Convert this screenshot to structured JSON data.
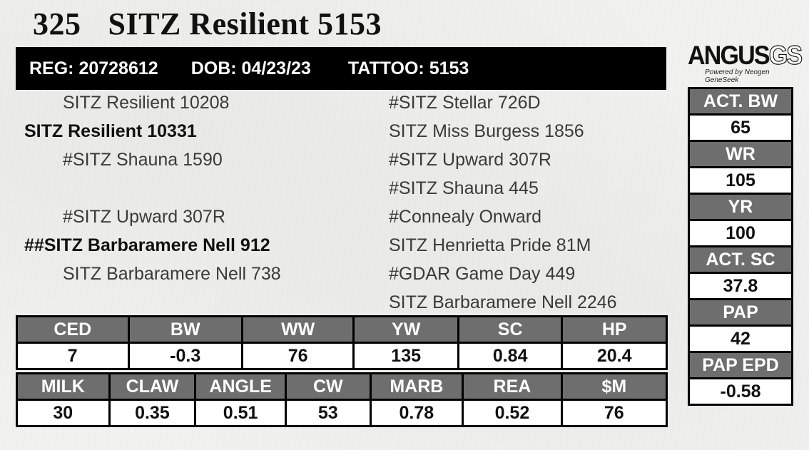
{
  "lot": {
    "number": "325",
    "name": "SITZ Resilient 5153"
  },
  "registration": {
    "reg": "REG: 20728612",
    "dob": "DOB: 04/23/23",
    "tattoo": "TATTOO: 5153"
  },
  "logo": {
    "brand": "ANGUS",
    "brand_suffix": "GS",
    "tagline": "Powered by Neogen GeneSeek"
  },
  "pedigree": {
    "sire_sire": "SITZ Resilient 10208",
    "sire": "SITZ Resilient 10331",
    "sire_dam": "#SITZ Shauna 1590",
    "dam_sire": "#SITZ Upward 307R",
    "dam": "##SITZ Barbaramere Nell 912",
    "dam_dam": "SITZ Barbaramere Nell 738",
    "right": [
      "#SITZ Stellar 726D",
      "SITZ Miss Burgess 1856",
      "#SITZ Upward 307R",
      "#SITZ Shauna 445",
      "#Connealy Onward",
      "SITZ Henrietta Pride 81M",
      "#GDAR Game Day 449",
      "SITZ Barbaramere Nell 2246"
    ]
  },
  "epd_row1": {
    "headers": [
      "CED",
      "BW",
      "WW",
      "YW",
      "SC",
      "HP"
    ],
    "values": [
      "7",
      "-0.3",
      "76",
      "135",
      "0.84",
      "20.4"
    ]
  },
  "epd_row2": {
    "headers": [
      "MILK",
      "CLAW",
      "ANGLE",
      "CW",
      "MARB",
      "REA",
      "$M"
    ],
    "values": [
      "30",
      "0.35",
      "0.51",
      "53",
      "0.78",
      "0.52",
      "76"
    ]
  },
  "side_stats": [
    {
      "label": "ACT. BW",
      "value": "65"
    },
    {
      "label": "WR",
      "value": "105"
    },
    {
      "label": "YR",
      "value": "100"
    },
    {
      "label": "ACT. SC",
      "value": "37.8"
    },
    {
      "label": "PAP",
      "value": "42"
    },
    {
      "label": "PAP EPD",
      "value": "-0.58"
    }
  ],
  "colors": {
    "header_bg": "#6e6e6e",
    "bar_bg": "#000000",
    "text": "#111111"
  }
}
